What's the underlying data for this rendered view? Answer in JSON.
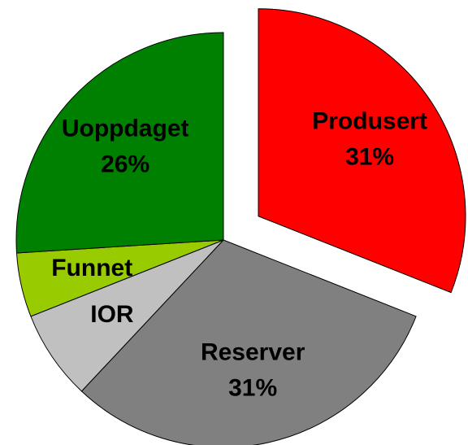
{
  "chart_data": {
    "type": "pie",
    "categories": [
      "Produsert",
      "Reserver",
      "IOR",
      "Funnet",
      "Uoppdaget"
    ],
    "values": [
      31,
      31,
      7,
      5,
      26
    ],
    "value_labels": [
      "31%",
      "31%",
      null,
      null,
      "26%"
    ],
    "colors": [
      "#ff0000",
      "#808080",
      "#c0c0c0",
      "#99cc00",
      "#008000"
    ],
    "exploded": [
      true,
      false,
      false,
      false,
      false
    ]
  }
}
